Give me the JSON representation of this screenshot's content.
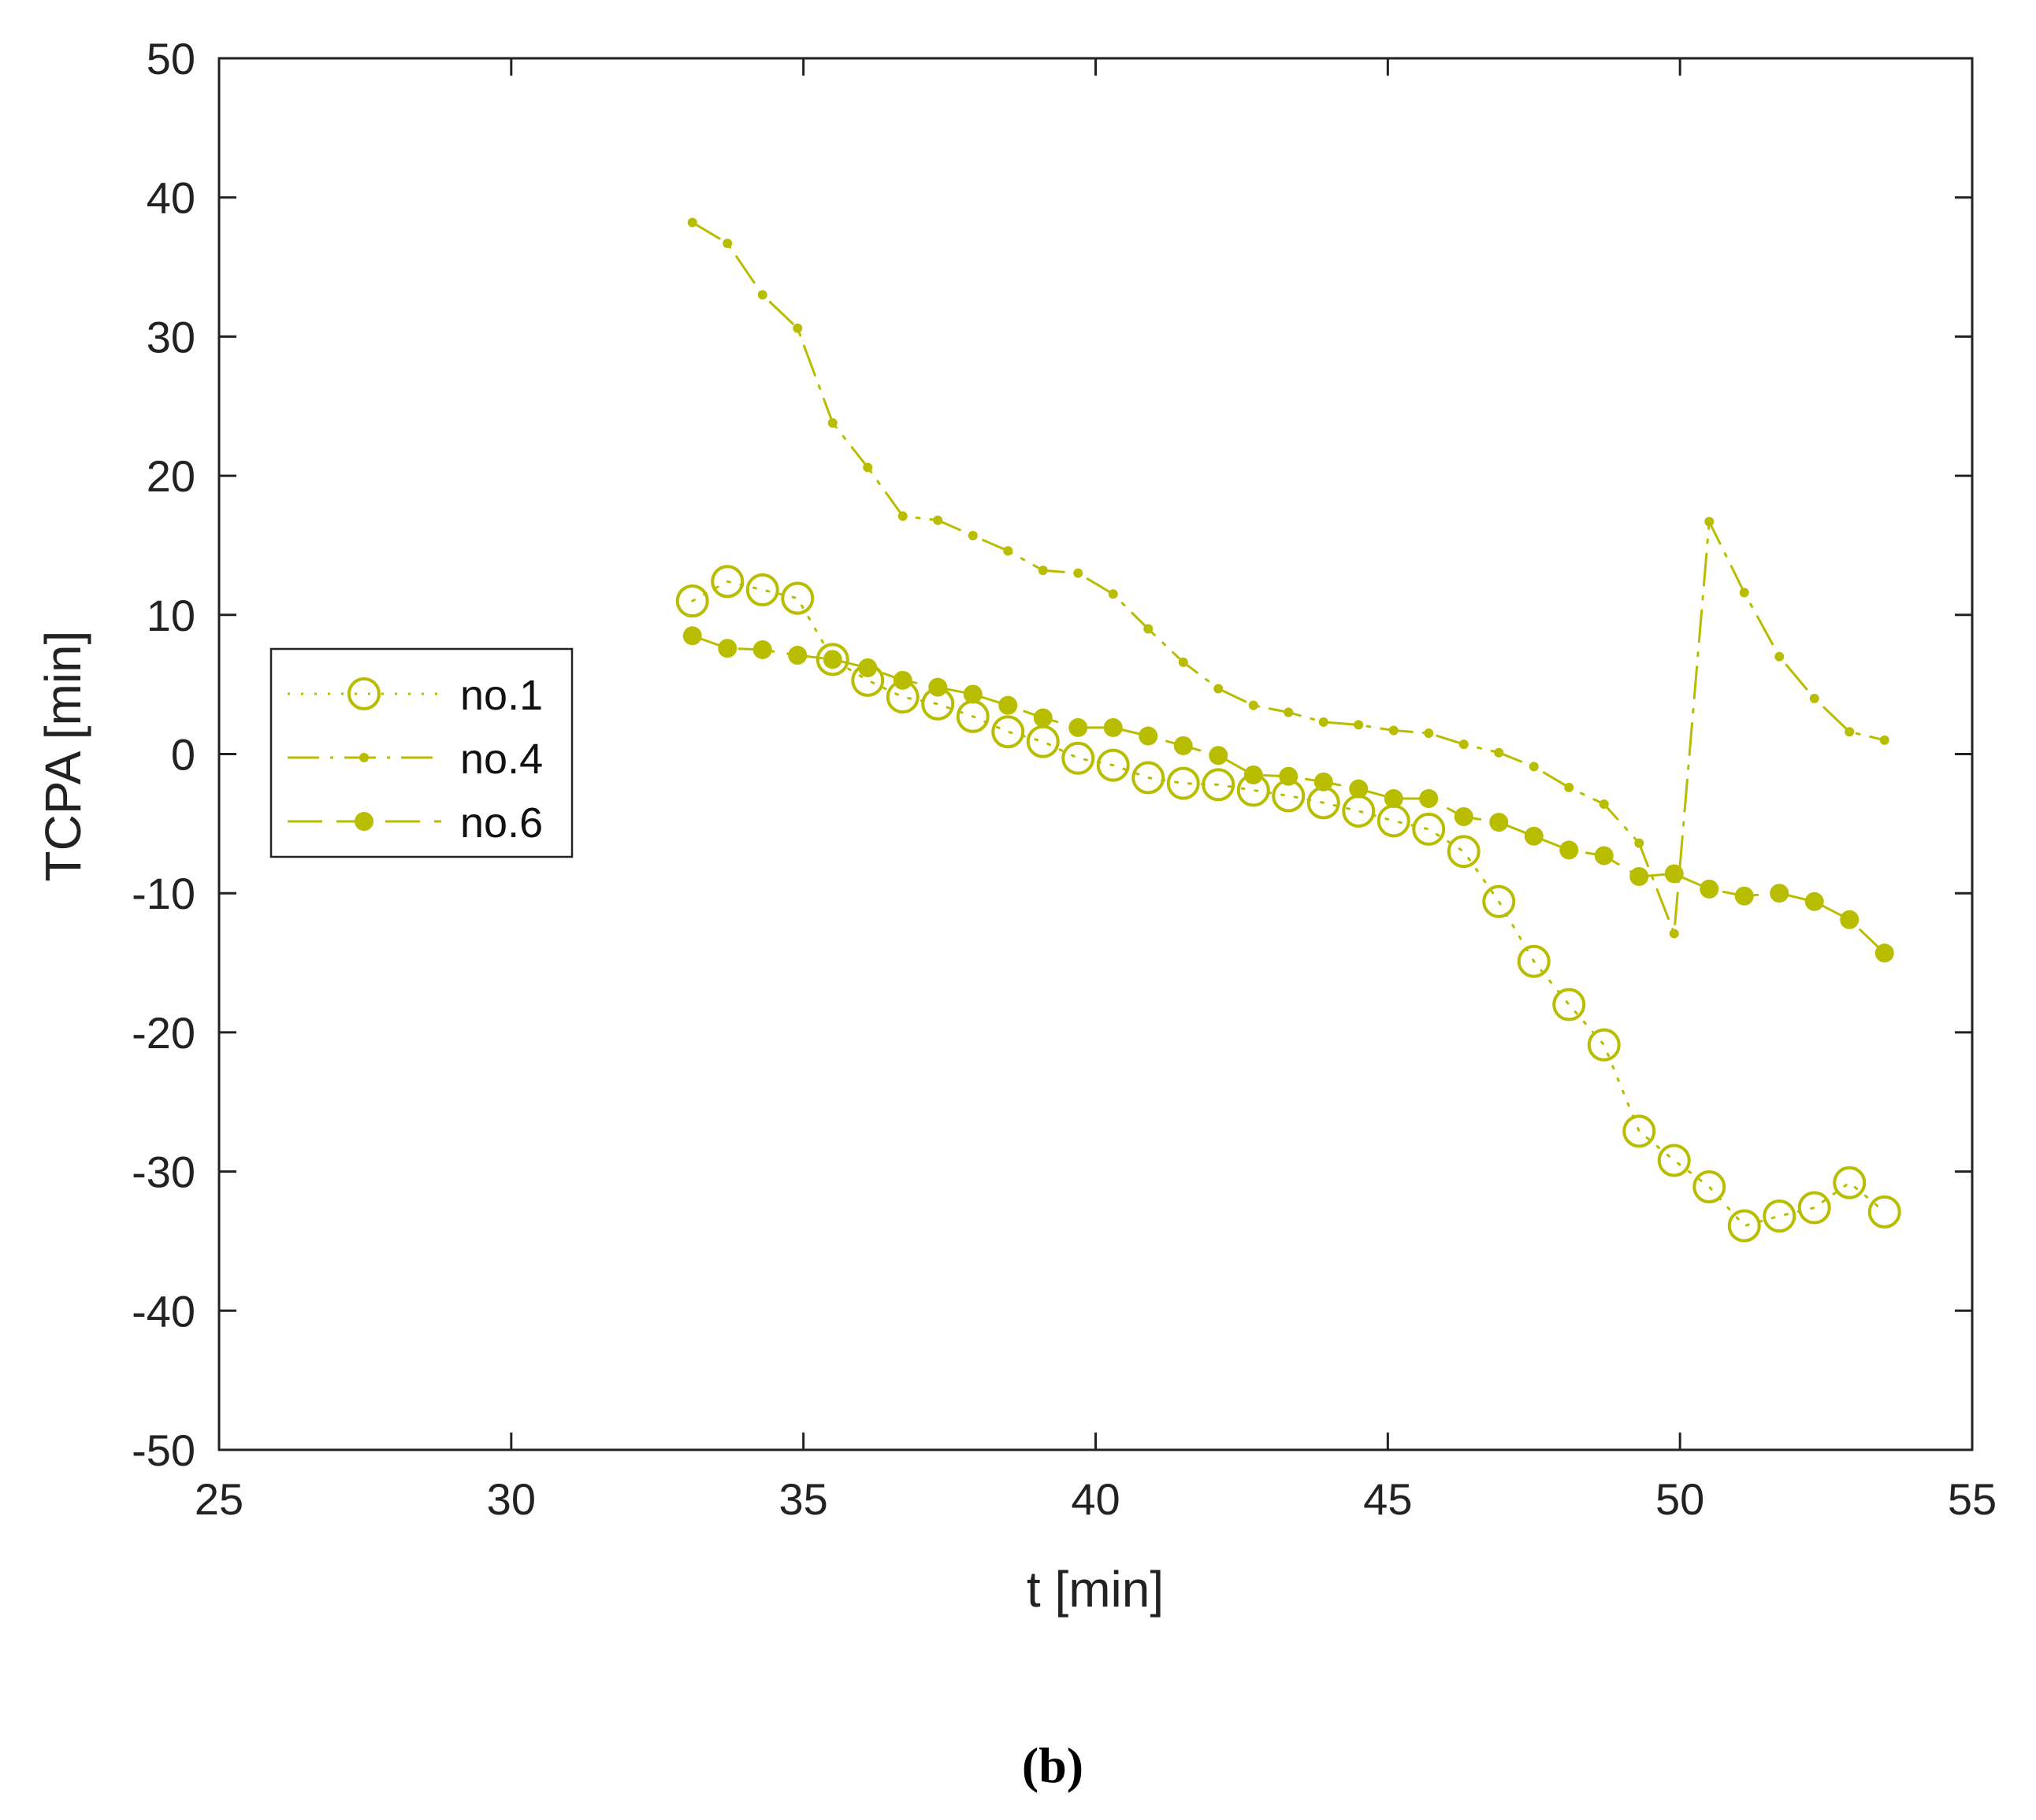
{
  "chart_data": {
    "type": "line",
    "title": "",
    "xlabel": "t [min]",
    "ylabel": "TCPA [min]",
    "xlim": [
      25,
      55
    ],
    "ylim": [
      -50,
      50
    ],
    "xticks": [
      25,
      30,
      35,
      40,
      45,
      50,
      55
    ],
    "yticks": [
      -50,
      -40,
      -30,
      -20,
      -10,
      0,
      10,
      20,
      30,
      40,
      50
    ],
    "legend_position": "left-middle",
    "color": "#b8bd00",
    "caption": "(b)",
    "series": [
      {
        "name": "no.1",
        "style": "dotted",
        "marker": "open-circle",
        "x": [
          33.1,
          33.7,
          34.3,
          34.9,
          35.5,
          36.1,
          36.7,
          37.3,
          37.9,
          38.5,
          39.1,
          39.7,
          40.3,
          40.9,
          41.5,
          42.1,
          42.7,
          43.3,
          43.9,
          44.5,
          45.1,
          45.7,
          46.3,
          46.9,
          47.5,
          48.1,
          48.7,
          49.3,
          49.9,
          50.5,
          51.1,
          51.7,
          52.3,
          52.9,
          53.5
        ],
        "y": [
          11.0,
          12.4,
          11.8,
          11.2,
          6.8,
          5.3,
          4.1,
          3.6,
          2.7,
          1.6,
          0.9,
          -0.3,
          -0.8,
          -1.7,
          -2.1,
          -2.2,
          -2.6,
          -3.0,
          -3.5,
          -4.1,
          -4.8,
          -5.4,
          -7.0,
          -10.6,
          -14.9,
          -18.0,
          -20.9,
          -27.1,
          -29.2,
          -31.1,
          -33.9,
          -33.2,
          -32.6,
          -30.8,
          -32.9
        ]
      },
      {
        "name": "no.4",
        "style": "dash-dot",
        "marker": "small-dot",
        "x": [
          33.1,
          33.7,
          34.3,
          34.9,
          35.5,
          36.1,
          36.7,
          37.3,
          37.9,
          38.5,
          39.1,
          39.7,
          40.3,
          40.9,
          41.5,
          42.1,
          42.7,
          43.3,
          43.9,
          44.5,
          45.1,
          45.7,
          46.3,
          46.9,
          47.5,
          48.1,
          48.7,
          49.3,
          49.9,
          50.5,
          51.1,
          51.7,
          52.3,
          52.9,
          53.5
        ],
        "y": [
          38.2,
          36.7,
          33.0,
          30.6,
          23.8,
          20.6,
          17.1,
          16.8,
          15.7,
          14.6,
          13.2,
          13.0,
          11.5,
          9.0,
          6.6,
          4.7,
          3.5,
          3.0,
          2.3,
          2.1,
          1.7,
          1.5,
          0.7,
          0.1,
          -0.9,
          -2.4,
          -3.6,
          -6.4,
          -12.9,
          16.7,
          11.6,
          7.0,
          4.0,
          1.6,
          1.0
        ]
      },
      {
        "name": "no.6",
        "style": "dashed",
        "marker": "filled-circle",
        "x": [
          33.1,
          33.7,
          34.3,
          34.9,
          35.5,
          36.1,
          36.7,
          37.3,
          37.9,
          38.5,
          39.1,
          39.7,
          40.3,
          40.9,
          41.5,
          42.1,
          42.7,
          43.3,
          43.9,
          44.5,
          45.1,
          45.7,
          46.3,
          46.9,
          47.5,
          48.1,
          48.7,
          49.3,
          49.9,
          50.5,
          51.1,
          51.7,
          52.3,
          52.9,
          53.5
        ],
        "y": [
          8.5,
          7.6,
          7.5,
          7.1,
          6.8,
          6.2,
          5.3,
          4.8,
          4.3,
          3.5,
          2.6,
          1.9,
          1.9,
          1.3,
          0.6,
          -0.1,
          -1.5,
          -1.6,
          -2.0,
          -2.5,
          -3.2,
          -3.2,
          -4.5,
          -4.9,
          -5.9,
          -6.9,
          -7.3,
          -8.8,
          -8.6,
          -9.7,
          -10.2,
          -10.0,
          -10.6,
          -11.9,
          -14.3
        ]
      }
    ]
  }
}
